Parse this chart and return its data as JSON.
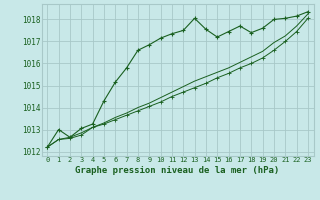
{
  "title": "Graphe pression niveau de la mer (hPa)",
  "background_color": "#c8e8e8",
  "grid_color": "#a8c8c8",
  "line_color": "#1a6020",
  "xlim": [
    -0.5,
    23.5
  ],
  "ylim": [
    1011.8,
    1018.7
  ],
  "yticks": [
    1012,
    1013,
    1014,
    1015,
    1016,
    1017,
    1018
  ],
  "xticks": [
    0,
    1,
    2,
    3,
    4,
    5,
    6,
    7,
    8,
    9,
    10,
    11,
    12,
    13,
    14,
    15,
    16,
    17,
    18,
    19,
    20,
    21,
    22,
    23
  ],
  "line1_x": [
    0,
    1,
    2,
    3,
    4,
    5,
    6,
    7,
    8,
    9,
    10,
    11,
    12,
    13,
    14,
    15,
    16,
    17,
    18,
    19,
    20,
    21,
    22,
    23
  ],
  "line1_y": [
    1012.2,
    1013.0,
    1012.65,
    1013.05,
    1013.25,
    1014.3,
    1015.15,
    1015.8,
    1016.6,
    1016.85,
    1017.15,
    1017.35,
    1017.5,
    1018.05,
    1017.55,
    1017.2,
    1017.45,
    1017.7,
    1017.4,
    1017.6,
    1018.0,
    1018.05,
    1018.15,
    1018.35
  ],
  "line2_x": [
    0,
    1,
    2,
    3,
    4,
    5,
    6,
    7,
    8,
    9,
    10,
    11,
    12,
    13,
    14,
    15,
    16,
    17,
    18,
    19,
    20,
    21,
    22,
    23
  ],
  "line2_y": [
    1012.2,
    1012.55,
    1012.6,
    1012.75,
    1013.1,
    1013.25,
    1013.45,
    1013.65,
    1013.85,
    1014.05,
    1014.25,
    1014.5,
    1014.7,
    1014.9,
    1015.1,
    1015.35,
    1015.55,
    1015.8,
    1016.0,
    1016.25,
    1016.6,
    1017.0,
    1017.45,
    1018.05
  ],
  "line3_x": [
    0,
    1,
    2,
    3,
    4,
    5,
    6,
    7,
    8,
    9,
    10,
    11,
    12,
    13,
    14,
    15,
    16,
    17,
    18,
    19,
    20,
    21,
    22,
    23
  ],
  "line3_y": [
    1012.2,
    1012.55,
    1012.65,
    1012.85,
    1013.1,
    1013.3,
    1013.55,
    1013.75,
    1014.0,
    1014.2,
    1014.45,
    1014.7,
    1014.95,
    1015.2,
    1015.4,
    1015.6,
    1015.8,
    1016.05,
    1016.3,
    1016.55,
    1016.95,
    1017.25,
    1017.7,
    1018.25
  ]
}
